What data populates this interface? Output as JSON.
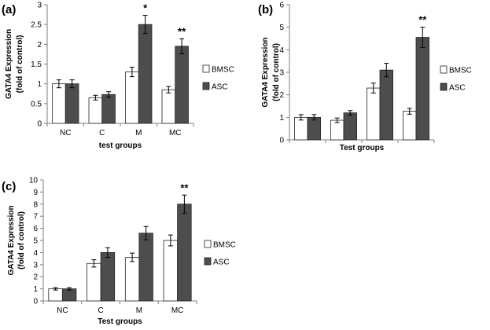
{
  "figure": {
    "colors": {
      "bmsc": "#ffffff",
      "asc": "#4d4d4d",
      "axis": "#7f7f7f",
      "stroke": "#222222"
    }
  },
  "chart_data": [
    {
      "panel_label": "(a)",
      "type": "bar",
      "categories": [
        "NC",
        "C",
        "M",
        "MC"
      ],
      "series": [
        {
          "name": "BMSC",
          "values": [
            1.0,
            0.65,
            1.3,
            0.85
          ],
          "errors": [
            0.1,
            0.06,
            0.12,
            0.08
          ]
        },
        {
          "name": "ASC",
          "values": [
            1.0,
            0.73,
            2.5,
            1.95
          ],
          "errors": [
            0.1,
            0.07,
            0.23,
            0.19
          ]
        }
      ],
      "annotations": [
        "",
        "",
        "*",
        "**"
      ],
      "xlabel": "test groups",
      "ylabel_lines": [
        "GATA4 Expression",
        "(fold of control)"
      ],
      "ylim": [
        0,
        3
      ],
      "yticks": [
        "0",
        "0.5",
        "1",
        "1.5",
        "2",
        "2.5",
        "3"
      ],
      "grid": false,
      "legend": "right"
    },
    {
      "panel_label": "(b)",
      "type": "bar",
      "categories": [
        "NC",
        "C",
        "M",
        "MC"
      ],
      "series": [
        {
          "name": "BMSC",
          "values": [
            1.0,
            0.87,
            2.3,
            1.27
          ],
          "errors": [
            0.12,
            0.1,
            0.22,
            0.13
          ]
        },
        {
          "name": "ASC",
          "values": [
            1.0,
            1.2,
            3.1,
            4.55
          ],
          "errors": [
            0.12,
            0.1,
            0.3,
            0.45
          ]
        }
      ],
      "annotations": [
        "",
        "",
        "",
        "**"
      ],
      "xlabel": "Test groups",
      "ylabel_lines": [
        "GATA4 Expression",
        "(fold of control)"
      ],
      "ylim": [
        0,
        6
      ],
      "yticks": [
        "0",
        "1",
        "2",
        "3",
        "4",
        "5",
        "6"
      ],
      "grid": false,
      "legend": "right"
    },
    {
      "panel_label": "(c)",
      "type": "bar",
      "categories": [
        "NC",
        "C",
        "M",
        "MC"
      ],
      "series": [
        {
          "name": "BMSC",
          "values": [
            1.0,
            3.1,
            3.6,
            5.0
          ],
          "errors": [
            0.1,
            0.3,
            0.35,
            0.45
          ]
        },
        {
          "name": "ASC",
          "values": [
            1.0,
            4.0,
            5.6,
            8.0
          ],
          "errors": [
            0.1,
            0.4,
            0.55,
            0.75
          ]
        }
      ],
      "annotations": [
        "",
        "",
        "",
        "**"
      ],
      "xlabel": "Test groups",
      "ylabel_lines": [
        "GATA4 Expression",
        "(fold of control)"
      ],
      "ylim": [
        0,
        10
      ],
      "yticks": [
        "0",
        "1",
        "2",
        "3",
        "4",
        "5",
        "6",
        "7",
        "8",
        "9",
        "10"
      ],
      "grid": false,
      "legend": "right"
    }
  ]
}
